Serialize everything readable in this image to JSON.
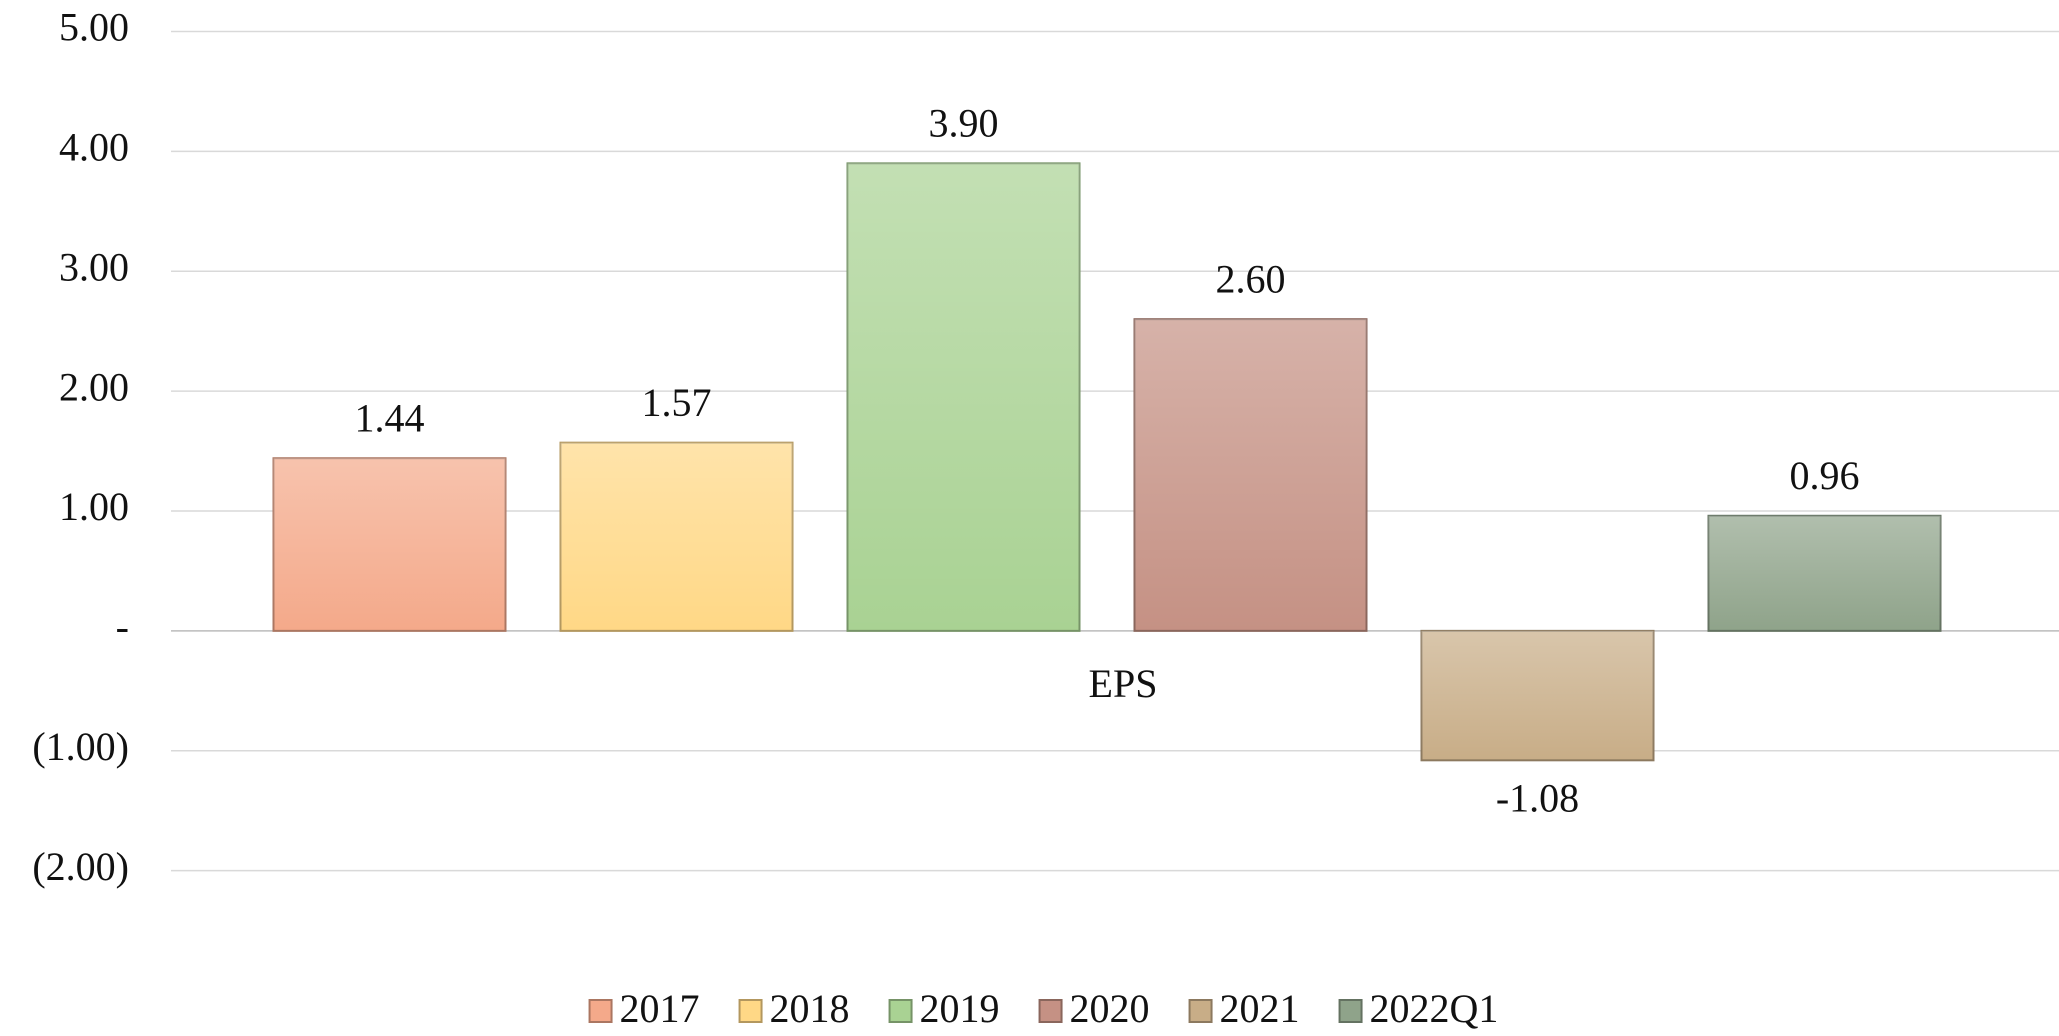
{
  "chart_data": {
    "type": "bar",
    "categories": [
      "EPS"
    ],
    "series": [
      {
        "name": "2017",
        "color": "#f4a98a",
        "values": [
          1.44
        ],
        "value_labels": [
          "1.44"
        ]
      },
      {
        "name": "2018",
        "color": "#ffd886",
        "values": [
          1.57
        ],
        "value_labels": [
          "1.57"
        ]
      },
      {
        "name": "2019",
        "color": "#a9d293",
        "values": [
          3.9
        ],
        "value_labels": [
          "3.90"
        ]
      },
      {
        "name": "2020",
        "color": "#c59184",
        "values": [
          2.6
        ],
        "value_labels": [
          "2.60"
        ]
      },
      {
        "name": "2021",
        "color": "#c8ad87",
        "values": [
          -1.08
        ],
        "value_labels": [
          "-1.08"
        ]
      },
      {
        "name": "2022Q1",
        "color": "#8fa38a",
        "values": [
          0.96
        ],
        "value_labels": [
          "0.96"
        ]
      }
    ],
    "ylim": [
      -2,
      5
    ],
    "yticks": [
      {
        "value": -2,
        "label": "(2.00)"
      },
      {
        "value": -1,
        "label": "(1.00)"
      },
      {
        "value": 0,
        "label": "-"
      },
      {
        "value": 1,
        "label": "1.00"
      },
      {
        "value": 2,
        "label": "2.00"
      },
      {
        "value": 3,
        "label": "3.00"
      },
      {
        "value": 4,
        "label": "4.00"
      },
      {
        "value": 5,
        "label": "5.00"
      }
    ],
    "grid": true,
    "legend": "bottom"
  }
}
